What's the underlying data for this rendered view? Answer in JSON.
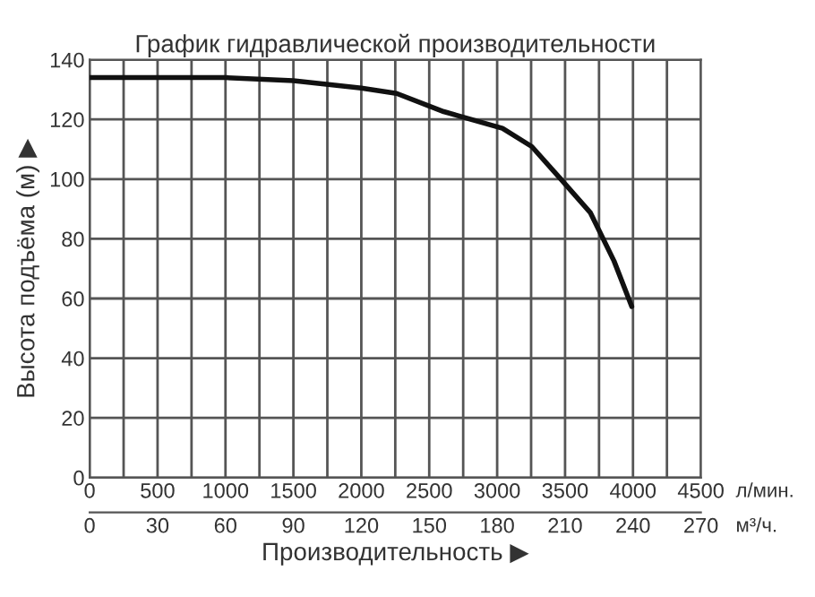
{
  "chart_data": {
    "type": "line",
    "title": "График гидравлической производительности",
    "xlabel": "Производительность ▶",
    "ylabel": "Высота подъёма (м) ▶",
    "series": [
      {
        "color": "#111111",
        "x": [
          0,
          500,
          1000,
          1500,
          2000,
          2260,
          2607,
          3039,
          3255,
          3472,
          3687,
          3861,
          3991
        ],
        "values": [
          134,
          134,
          134,
          133,
          130.5,
          128.7,
          122.6,
          117,
          110.9,
          99.8,
          88.7,
          72.5,
          57.3
        ]
      }
    ],
    "xlim": [
      0,
      4500
    ],
    "xticks": [
      0,
      500,
      1000,
      1500,
      2000,
      2500,
      3000,
      3500,
      4000,
      4500
    ],
    "x2lim": [
      0,
      270
    ],
    "x2ticks": [
      0,
      30,
      60,
      90,
      120,
      150,
      180,
      210,
      240,
      270
    ],
    "annotations": [
      "л/мин.",
      "м³/ч."
    ],
    "ylim": [
      0,
      140
    ],
    "yticks": [
      0,
      20,
      40,
      60,
      80,
      100,
      120,
      140
    ],
    "grid": true,
    "marker": "none",
    "line_style": "solid"
  }
}
